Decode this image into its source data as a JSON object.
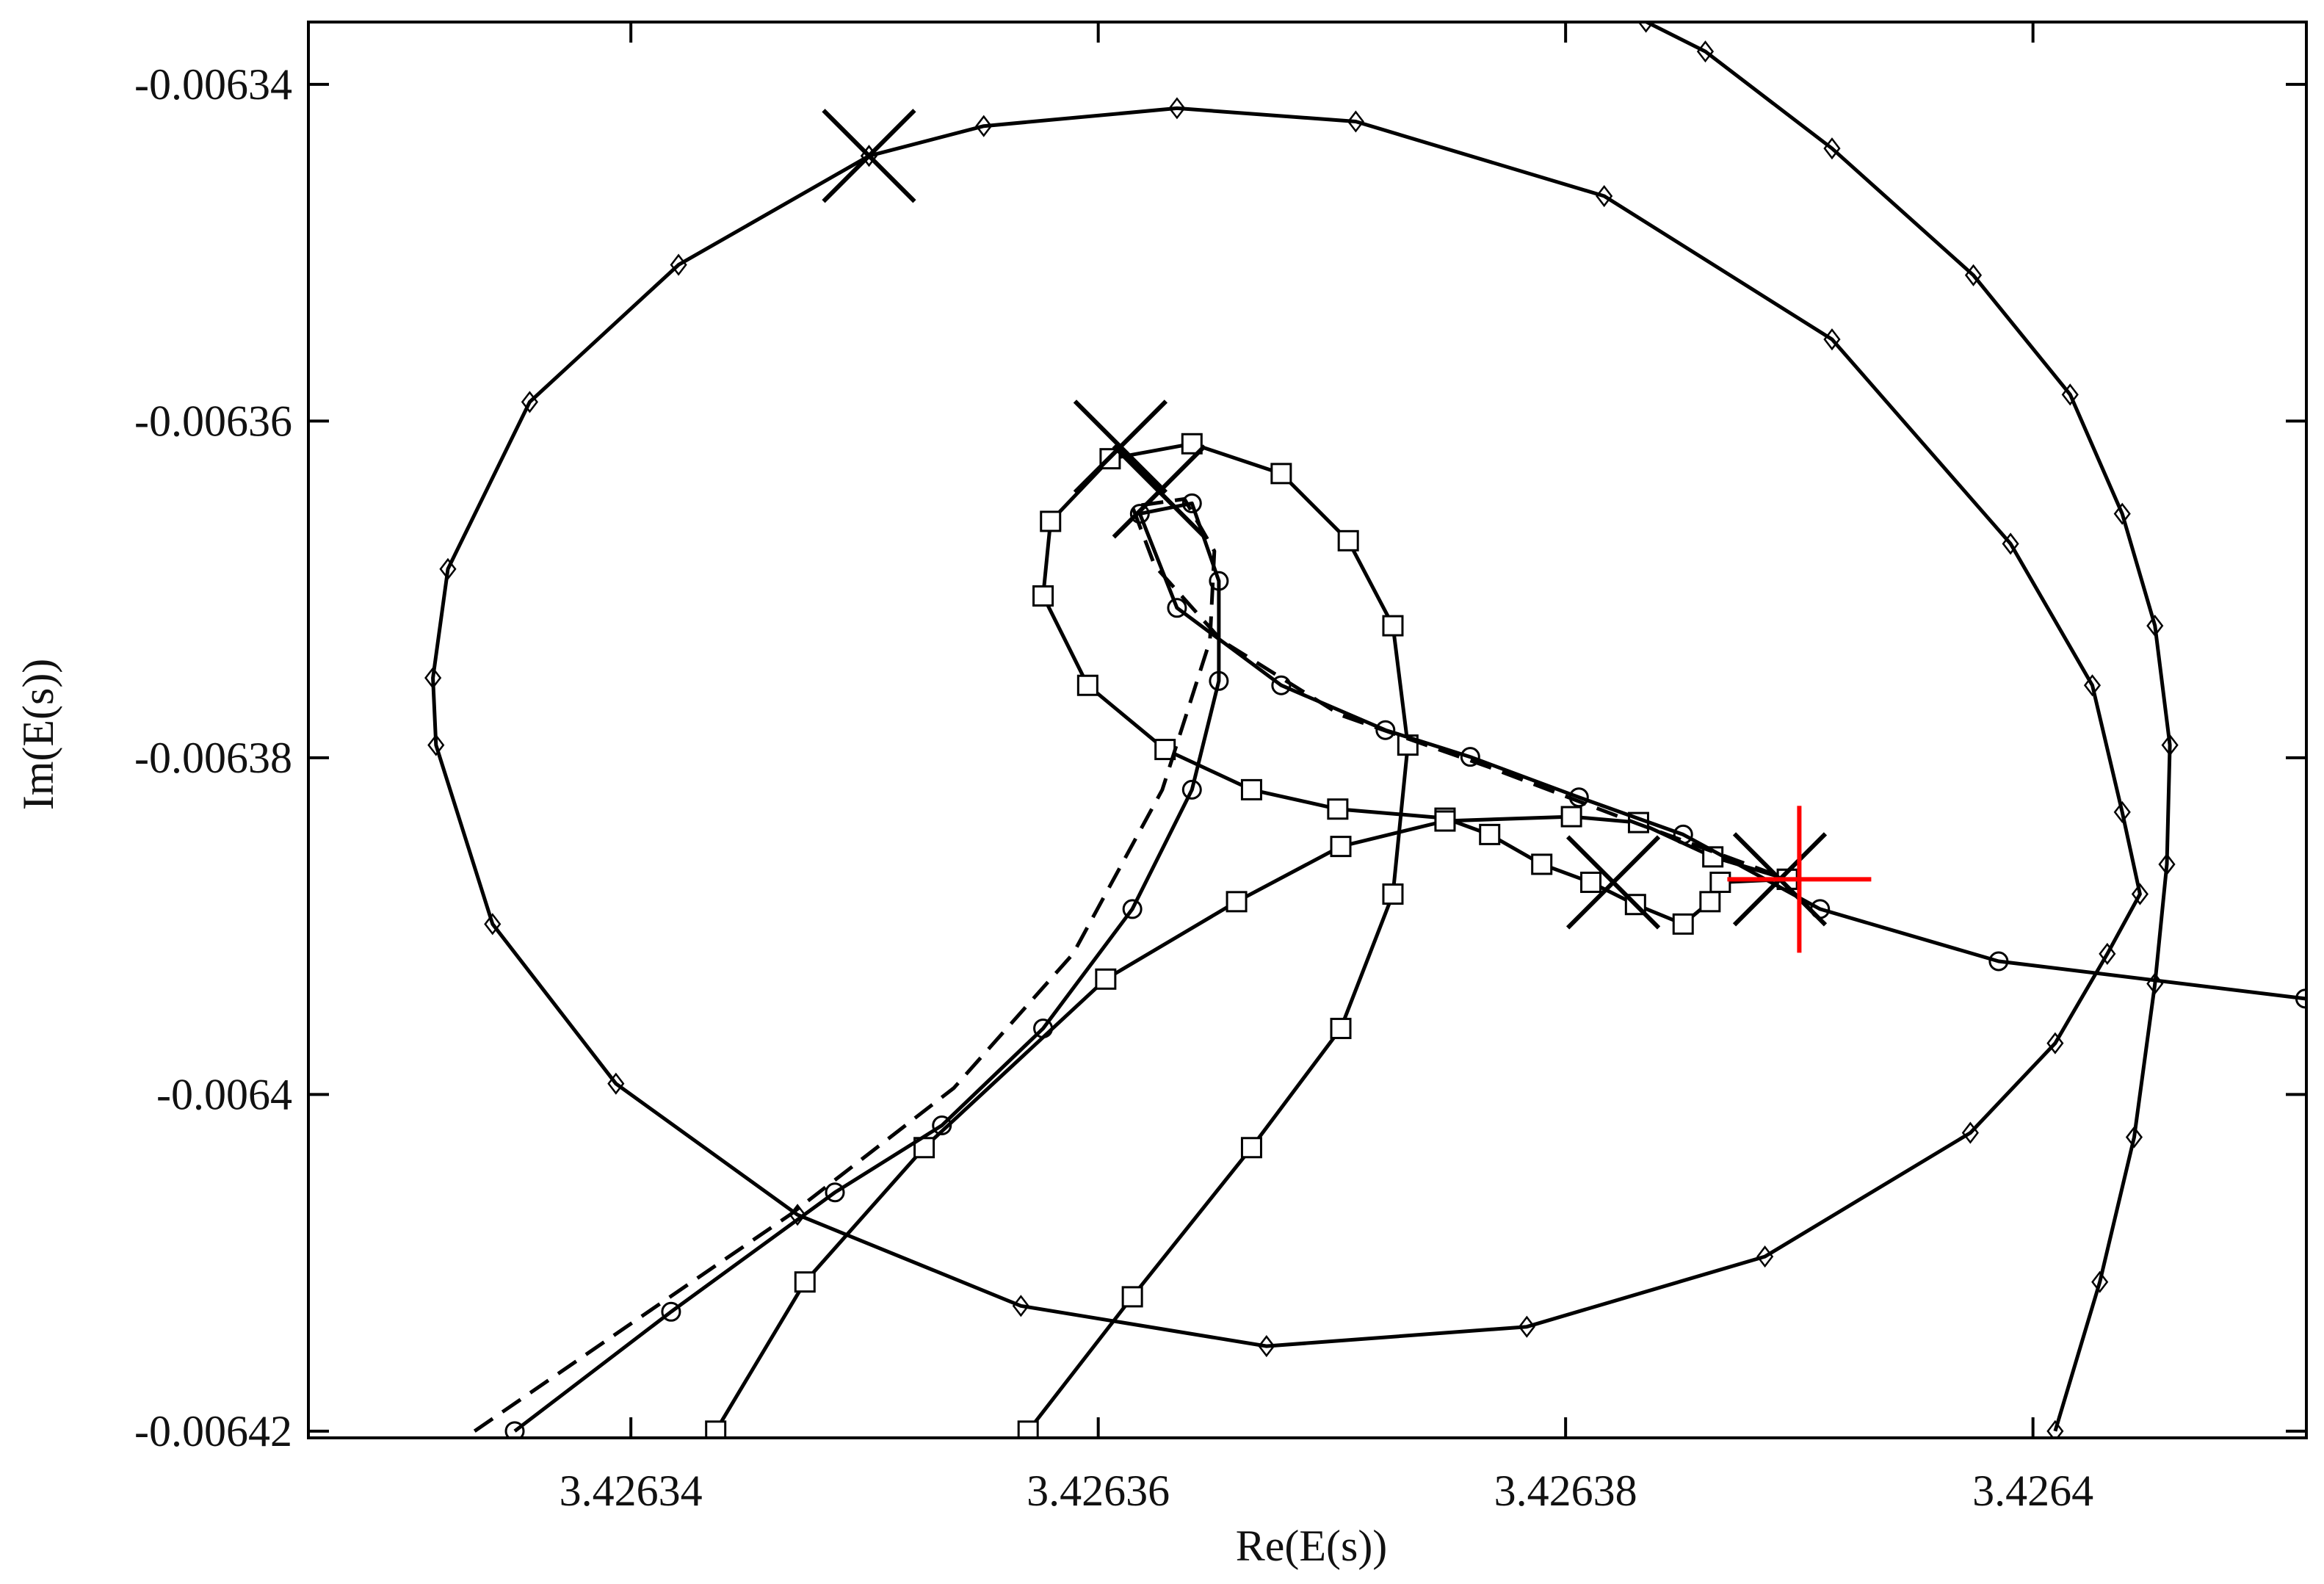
{
  "chart_data": {
    "type": "line",
    "xlabel": "Re(E(s))",
    "ylabel": "Im(E(s))",
    "xlim": [
      3.4263262,
      3.4264117
    ],
    "ylim": [
      -0.0064204,
      -0.0063363
    ],
    "xticks": [
      3.42634,
      3.42636,
      3.42638,
      3.4264
    ],
    "yticks": [
      -0.00634,
      -0.00636,
      -0.00638,
      -0.0064,
      -0.00642
    ],
    "series": [
      {
        "color": "#000000",
        "line": "solid",
        "marker": "diamond",
        "x": [
          3.42635019,
          3.4263551,
          3.42636337,
          3.42637102,
          3.42638165,
          3.4263914,
          3.42639904,
          3.42640254,
          3.42640382,
          3.42640458,
          3.42640318,
          3.42640095,
          3.42639732,
          3.42638853,
          3.42637834,
          3.4263672,
          3.42635669,
          3.42634713,
          3.42633936,
          3.42633408,
          3.42633166,
          3.42633153,
          3.42633217,
          3.42633567,
          3.42634204,
          3.42635019
        ],
        "values": [
          -0.00634425,
          -0.00634248,
          -0.00634142,
          -0.00634221,
          -0.00634664,
          -0.00635515,
          -0.00636729,
          -0.0063757,
          -0.00638323,
          -0.0063881,
          -0.00639165,
          -0.00639696,
          -0.00640228,
          -0.00640963,
          -0.0064138,
          -0.00641495,
          -0.00641256,
          -0.00640715,
          -0.00639936,
          -0.00638988,
          -0.00637925,
          -0.00637526,
          -0.00636879,
          -0.00635887,
          -0.00635072,
          -0.00634425
        ]
      },
      {
        "color": "#000000",
        "line": "solid",
        "marker": "diamond",
        "x": [
          3.42638344,
          3.42638598,
          3.4263914,
          3.42639745,
          3.42640159,
          3.42640382,
          3.42640522,
          3.42640586,
          3.42640573,
          3.42640522,
          3.42640433,
          3.42640286,
          3.42640095
        ],
        "values": [
          -0.00633628,
          -0.00633805,
          -0.00634381,
          -0.00635134,
          -0.00635843,
          -0.00636551,
          -0.00637216,
          -0.00637925,
          -0.00638633,
          -0.00639342,
          -0.00640254,
          -0.00641114,
          -0.00642
        ]
      },
      {
        "color": "#000000",
        "line": "solid",
        "marker": "square",
        "x": [
          3.426357,
          3.42636146,
          3.42636656,
          3.42637038,
          3.42637261,
          3.42637325,
          3.42637261,
          3.4263707,
          3.42636783,
          3.42636401,
          3.42636051,
          3.42635796,
          3.42635764,
          3.42635955,
          3.42636286,
          3.42636656,
          3.42637025,
          3.42637484,
          3.42637675,
          3.42637898,
          3.42638108,
          3.42638299,
          3.42638503,
          3.42638618,
          3.42638662,
          3.42638949
        ],
        "values": [
          -0.00642,
          -0.00641202,
          -0.00640316,
          -0.00639608,
          -0.0063881,
          -0.00637925,
          -0.00637216,
          -0.00636711,
          -0.00636312,
          -0.00636135,
          -0.00636224,
          -0.00636596,
          -0.00637039,
          -0.0063757,
          -0.00637951,
          -0.0063819,
          -0.00638305,
          -0.00638359,
          -0.00638456,
          -0.00638633,
          -0.0063874,
          -0.00638872,
          -0.00638988,
          -0.00638855,
          -0.0063874,
          -0.00638722
        ]
      },
      {
        "color": "#000000",
        "line": "solid",
        "marker": "square",
        "x": [
          3.42634363,
          3.42634745,
          3.42635255,
          3.42636032,
          3.42636592,
          3.42637038,
          3.42637484,
          3.42638025,
          3.42638312,
          3.4263863,
          3.42638949
        ],
        "values": [
          -0.00642,
          -0.00641114,
          -0.00640316,
          -0.00639315,
          -0.00638855,
          -0.00638527,
          -0.00638376,
          -0.0063835,
          -0.00638385,
          -0.00638589,
          -0.00638722
        ]
      },
      {
        "color": "#000000",
        "line": "solid",
        "marker": "circle",
        "x": [
          3.42633503,
          3.42634172,
          3.42634873,
          3.42635331,
          3.42635764,
          3.42636146,
          3.42636401,
          3.42636516,
          3.42636516,
          3.42636401,
          3.42636178,
          3.42636337,
          3.42636783,
          3.42637229,
          3.42637592,
          3.42638057,
          3.42638503,
          3.42639089,
          3.42639853,
          3.42641165
        ],
        "values": [
          -0.00642,
          -0.00641291,
          -0.00640582,
          -0.00640184,
          -0.00639608,
          -0.00638899,
          -0.0063819,
          -0.00637544,
          -0.0063695,
          -0.00636489,
          -0.00636551,
          -0.0063711,
          -0.0063757,
          -0.00637836,
          -0.00637995,
          -0.00638235,
          -0.00638456,
          -0.00638899,
          -0.00639209,
          -0.00639431
        ]
      },
      {
        "color": "#000000",
        "line": "dashed",
        "marker": "none",
        "x": [
          3.42633331,
          3.42633981,
          3.42634681,
          3.42635382,
          3.42635892,
          3.42636274,
          3.42636478,
          3.42636497,
          3.42636369,
          3.42636146,
          3.42636242,
          3.42636528,
          3.42637038,
          3.42637675,
          3.42638312,
          3.42638949
        ],
        "values": [
          -0.00642,
          -0.0064138,
          -0.00640715,
          -0.00639962,
          -0.00639165,
          -0.0063819,
          -0.00637304,
          -0.00636773,
          -0.00636463,
          -0.00636507,
          -0.00636861,
          -0.00637304,
          -0.00637747,
          -0.00638057,
          -0.00638394,
          -0.00638722
        ]
      },
      {
        "color": "#000000",
        "line": "none",
        "marker": "x",
        "x": [
          3.42635019,
          3.42636095,
          3.42636261,
          3.42638204,
          3.42638917
        ],
        "values": [
          -0.00634425,
          -0.00636153,
          -0.00636419,
          -0.0063874,
          -0.00638722
        ]
      },
      {
        "color": "#ff0000",
        "line": "none",
        "marker": "cross",
        "x": [
          3.42639
        ],
        "values": [
          -0.00638722
        ]
      }
    ]
  }
}
